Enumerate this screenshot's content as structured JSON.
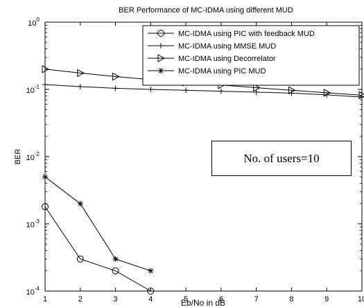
{
  "chart_data": {
    "type": "line",
    "title": "BER Performance of MC-IDMA using different MUD",
    "xlabel": "Eb/No in dB",
    "ylabel": "BER",
    "xlim": [
      1,
      10
    ],
    "ylim": [
      0.0001,
      1
    ],
    "yscale": "log",
    "grid": false,
    "legend_position": "top-right",
    "x_ticks": [
      "1",
      "2",
      "3",
      "4",
      "5",
      "6",
      "7",
      "8",
      "9",
      "10"
    ],
    "y_ticks": [
      {
        "value": 1,
        "label": "10",
        "exp": "0"
      },
      {
        "value": 0.1,
        "label": "10",
        "exp": "-1"
      },
      {
        "value": 0.01,
        "label": "10",
        "exp": "-2"
      },
      {
        "value": 0.001,
        "label": "10",
        "exp": "-3"
      },
      {
        "value": 0.0001,
        "label": "10",
        "exp": "-4"
      }
    ],
    "series": [
      {
        "name": "MC-IDMA using PIC with feedback MUD",
        "marker": "circle",
        "color": "#000000",
        "x": [
          1,
          2,
          3,
          4
        ],
        "y": [
          0.0018,
          0.0003,
          0.0002,
          0.0001
        ]
      },
      {
        "name": "MC-IDMA using MMSE MUD",
        "marker": "plus",
        "color": "#000000",
        "x": [
          1,
          2,
          3,
          4,
          5,
          6,
          7,
          8,
          9,
          10
        ],
        "y": [
          0.118,
          0.11,
          0.104,
          0.1,
          0.097,
          0.094,
          0.091,
          0.088,
          0.083,
          0.077
        ]
      },
      {
        "name": "MC-IDMA using Decorrelator",
        "marker": "triangle-right",
        "color": "#000000",
        "x": [
          1,
          2,
          3,
          4,
          5,
          6,
          7,
          8,
          9,
          10
        ],
        "y": [
          0.2,
          0.175,
          0.155,
          0.14,
          0.127,
          0.116,
          0.106,
          0.097,
          0.089,
          0.082
        ]
      },
      {
        "name": "MC-IDMA using PIC MUD",
        "marker": "star",
        "color": "#000000",
        "x": [
          1,
          2,
          3,
          4
        ],
        "y": [
          0.005,
          0.002,
          0.0003,
          0.0002
        ]
      }
    ],
    "annotations": [
      {
        "text": "No. of users=10"
      }
    ]
  }
}
